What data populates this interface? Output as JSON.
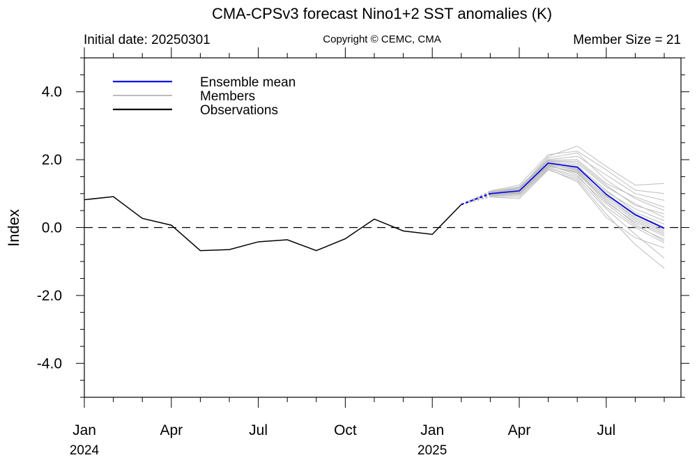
{
  "header": {
    "title": "CMA-CPSv3 forecast Nino1+2 SST anomalies (K)",
    "initial_date": "Initial date: 20250301",
    "copyright": "Copyright © CEMC, CMA",
    "member_size": "Member Size = 21"
  },
  "chart_data": {
    "type": "line",
    "title": "CMA-CPSv3 forecast Nino1+2 SST anomalies (K)",
    "ylabel": "Index",
    "xlabel": "",
    "ylim": [
      -5,
      5
    ],
    "x_range": [
      "2024-01",
      "2025-09"
    ],
    "y_ticks": [
      {
        "value": 4,
        "label": "4.0"
      },
      {
        "value": 2,
        "label": "2.0"
      },
      {
        "value": 0,
        "label": "0.0"
      },
      {
        "value": -2,
        "label": "-2.0"
      },
      {
        "value": -4,
        "label": "-4.0"
      }
    ],
    "x_ticks": [
      {
        "month": "2024-01",
        "label": "Jan",
        "year": "2024"
      },
      {
        "month": "2024-04",
        "label": "Apr",
        "year": ""
      },
      {
        "month": "2024-07",
        "label": "Jul",
        "year": ""
      },
      {
        "month": "2024-10",
        "label": "Oct",
        "year": ""
      },
      {
        "month": "2025-01",
        "label": "Jan",
        "year": "2025"
      },
      {
        "month": "2025-04",
        "label": "Apr",
        "year": ""
      },
      {
        "month": "2025-07",
        "label": "Jul",
        "year": ""
      }
    ],
    "legend": {
      "placement": "top-left",
      "entries": [
        {
          "name": "Ensemble mean",
          "color": "#0000ee"
        },
        {
          "name": "Members",
          "color": "#bbbbbb"
        },
        {
          "name": "Observations",
          "color": "#000000"
        }
      ]
    },
    "reference_line": {
      "y": 0,
      "style": "dashed"
    },
    "series": [
      {
        "name": "Observations",
        "color": "#000000",
        "points": [
          [
            "2024-01",
            0.82
          ],
          [
            "2024-02",
            0.91
          ],
          [
            "2024-03",
            0.27
          ],
          [
            "2024-04",
            0.07
          ],
          [
            "2024-05",
            -0.68
          ],
          [
            "2024-06",
            -0.65
          ],
          [
            "2024-07",
            -0.42
          ],
          [
            "2024-08",
            -0.36
          ],
          [
            "2024-09",
            -0.68
          ],
          [
            "2024-10",
            -0.33
          ],
          [
            "2024-11",
            0.25
          ],
          [
            "2024-12",
            -0.1
          ],
          [
            "2025-01",
            -0.2
          ],
          [
            "2025-02",
            0.68
          ]
        ]
      },
      {
        "name": "Ensemble mean",
        "color": "#0000ee",
        "points": [
          [
            "2025-02",
            0.68
          ],
          [
            "2025-03",
            1.0
          ],
          [
            "2025-04",
            1.08
          ],
          [
            "2025-05",
            1.9
          ],
          [
            "2025-06",
            1.78
          ],
          [
            "2025-07",
            0.98
          ],
          [
            "2025-08",
            0.38
          ],
          [
            "2025-09",
            -0.02
          ]
        ]
      }
    ],
    "members": [
      [
        0.68,
        1.05,
        1.12,
        2.05,
        2.2,
        1.4,
        0.85,
        0.5
      ],
      [
        0.68,
        0.95,
        1.0,
        1.85,
        1.55,
        0.6,
        0.0,
        -0.45
      ],
      [
        0.68,
        1.0,
        1.15,
        2.1,
        2.4,
        1.8,
        1.25,
        1.3
      ],
      [
        0.68,
        0.9,
        0.85,
        1.7,
        1.4,
        0.4,
        -0.5,
        -1.2
      ],
      [
        0.68,
        1.02,
        1.1,
        1.95,
        1.9,
        1.2,
        0.7,
        0.3
      ],
      [
        0.68,
        0.98,
        1.05,
        1.8,
        1.65,
        0.85,
        0.2,
        -0.2
      ],
      [
        0.68,
        1.06,
        1.2,
        2.0,
        2.1,
        1.55,
        1.0,
        0.8
      ],
      [
        0.68,
        0.94,
        0.95,
        1.75,
        1.45,
        0.55,
        -0.2,
        -0.9
      ],
      [
        0.68,
        1.01,
        1.08,
        1.9,
        1.8,
        1.1,
        0.45,
        0.1
      ],
      [
        0.68,
        0.97,
        1.02,
        1.85,
        1.7,
        0.9,
        0.3,
        -0.1
      ],
      [
        0.68,
        1.04,
        1.18,
        1.98,
        2.0,
        1.3,
        0.9,
        0.6
      ],
      [
        0.68,
        0.96,
        0.98,
        1.78,
        1.5,
        0.7,
        0.05,
        -0.35
      ],
      [
        0.68,
        1.03,
        1.12,
        1.92,
        1.85,
        0.95,
        0.35,
        -0.05
      ],
      [
        0.68,
        0.99,
        1.05,
        1.88,
        1.75,
        1.05,
        0.55,
        0.2
      ],
      [
        0.68,
        1.08,
        1.25,
        2.15,
        2.25,
        1.7,
        1.1,
        1.0
      ],
      [
        0.68,
        0.92,
        0.9,
        1.72,
        1.35,
        0.3,
        -0.3,
        -0.6
      ],
      [
        0.68,
        1.0,
        1.06,
        1.84,
        1.6,
        0.75,
        0.15,
        -0.25
      ],
      [
        0.68,
        1.05,
        1.15,
        1.96,
        1.95,
        1.25,
        0.65,
        0.4
      ],
      [
        0.68,
        0.95,
        1.0,
        1.82,
        1.62,
        0.8,
        0.1,
        -0.4
      ],
      [
        0.68,
        1.02,
        1.1,
        1.9,
        1.72,
        1.0,
        0.4,
        0.0
      ],
      [
        0.68,
        0.98,
        1.03,
        1.86,
        1.68,
        0.92,
        0.25,
        -0.15
      ]
    ],
    "members_months": [
      "2025-02",
      "2025-03",
      "2025-04",
      "2025-05",
      "2025-06",
      "2025-07",
      "2025-08",
      "2025-09"
    ],
    "grid": false
  }
}
